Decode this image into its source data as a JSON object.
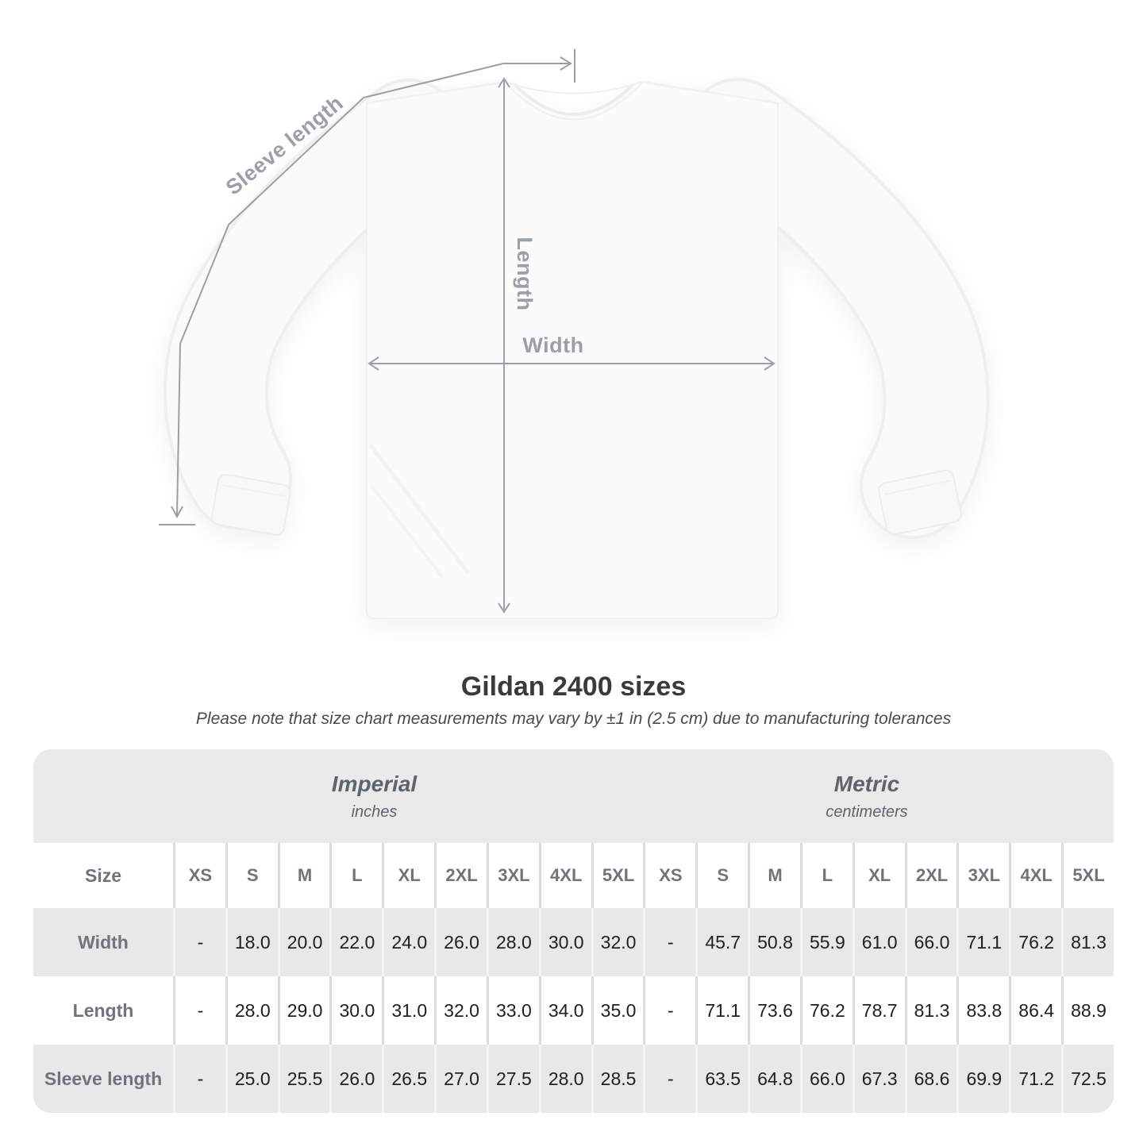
{
  "title": "Gildan 2400 sizes",
  "subtitle": "Please note that size chart measurements may vary by ±1 in (2.5 cm) due to manufacturing tolerances",
  "diagram": {
    "sleeve_length_label": "Sleeve length",
    "length_label": "Length",
    "width_label": "Width"
  },
  "table": {
    "size_col_header": "Size",
    "unit_groups": [
      {
        "name": "Imperial",
        "unit": "inches"
      },
      {
        "name": "Metric",
        "unit": "centimeters"
      }
    ],
    "sizes": [
      "XS",
      "S",
      "M",
      "L",
      "XL",
      "2XL",
      "3XL",
      "4XL",
      "5XL"
    ],
    "rows": [
      {
        "label": "Width",
        "imperial": [
          "-",
          "18.0",
          "20.0",
          "22.0",
          "24.0",
          "26.0",
          "28.0",
          "30.0",
          "32.0"
        ],
        "metric": [
          "-",
          "45.7",
          "50.8",
          "55.9",
          "61.0",
          "66.0",
          "71.1",
          "76.2",
          "81.3"
        ]
      },
      {
        "label": "Length",
        "imperial": [
          "-",
          "28.0",
          "29.0",
          "30.0",
          "31.0",
          "32.0",
          "33.0",
          "34.0",
          "35.0"
        ],
        "metric": [
          "-",
          "71.1",
          "73.6",
          "76.2",
          "78.7",
          "81.3",
          "83.8",
          "86.4",
          "88.9"
        ]
      },
      {
        "label": "Sleeve length",
        "imperial": [
          "-",
          "25.0",
          "25.5",
          "26.0",
          "26.5",
          "27.0",
          "27.5",
          "28.0",
          "28.5"
        ],
        "metric": [
          "-",
          "63.5",
          "64.8",
          "66.0",
          "67.3",
          "68.6",
          "69.9",
          "71.2",
          "72.5"
        ]
      }
    ]
  },
  "colors": {
    "dimension_line": "#9aa0a6",
    "table_band": "#eaeaea",
    "gray_cell": "#e8e8e8",
    "white_cell": "#ffffff",
    "label_text": "#6e747a",
    "value_text": "#202020",
    "title_text": "#3a3a3a"
  }
}
